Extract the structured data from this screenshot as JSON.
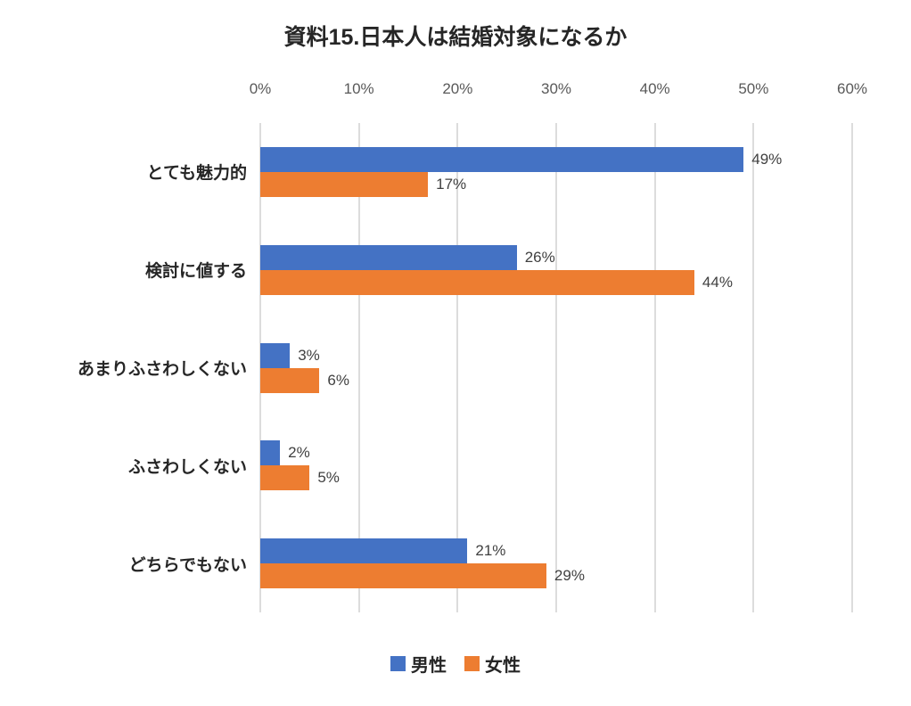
{
  "chart_data": {
    "type": "bar",
    "orientation": "horizontal",
    "title": "資料15.日本人は結婚対象になるか",
    "categories": [
      "とても魅力的",
      "検討に値する",
      "あまりふさわしくない",
      "ふさわしくない",
      "どちらでもない"
    ],
    "series": [
      {
        "name": "男性",
        "color": "#4472C4",
        "values": [
          49,
          26,
          3,
          2,
          21
        ],
        "labels": [
          "49%",
          "26%",
          "3%",
          "2%",
          "21%"
        ]
      },
      {
        "name": "女性",
        "color": "#ED7D31",
        "values": [
          17,
          44,
          6,
          5,
          29
        ],
        "labels": [
          "17%",
          "44%",
          "6%",
          "5%",
          "29%"
        ]
      }
    ],
    "x_ticks": [
      "0%",
      "10%",
      "20%",
      "30%",
      "40%",
      "50%",
      "60%"
    ],
    "xlim": [
      0,
      60
    ],
    "xlabel": "",
    "ylabel": "",
    "grid": "vertical",
    "axis_position": "top",
    "legend_position": "bottom",
    "colors": {
      "gridline": "#DCDCDC",
      "axis_text": "#595959",
      "data_label_text": "#404040",
      "title_text": "#262626"
    }
  }
}
